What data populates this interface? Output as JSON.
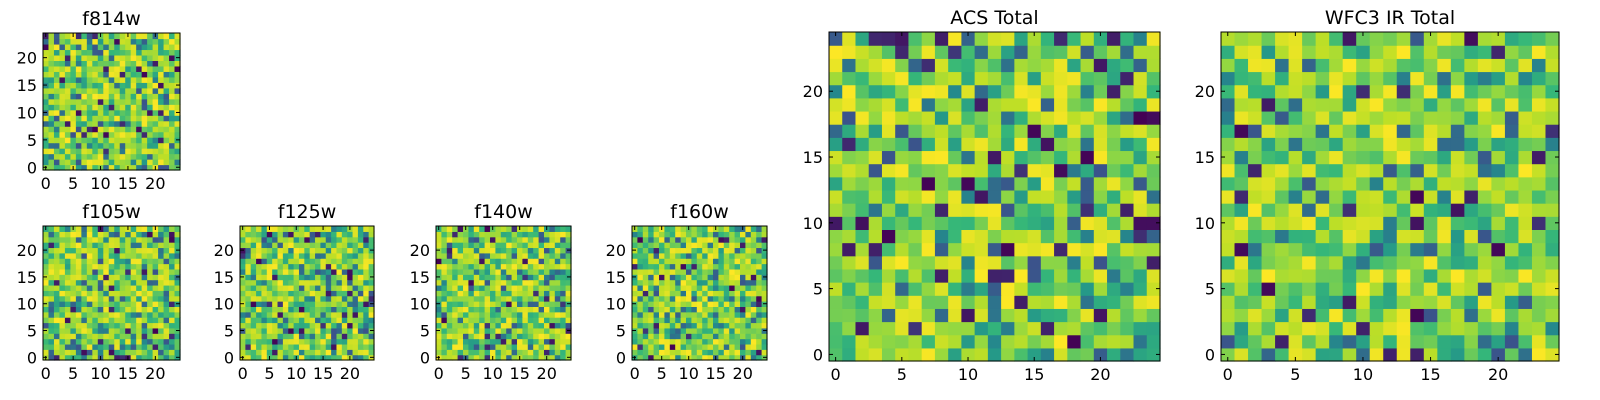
{
  "chart_data": [
    {
      "type": "heatmap",
      "title": "f814w",
      "grid_size": 25,
      "x_ticks": [
        0,
        5,
        10,
        15,
        20
      ],
      "y_ticks": [
        0,
        5,
        10,
        15,
        20
      ],
      "x_tick_labels": [
        "0",
        "5",
        "10",
        "15",
        "20"
      ],
      "y_tick_labels": [
        "0",
        "5",
        "10",
        "15",
        "20"
      ],
      "colormap": "viridis",
      "pixel_values": "per-pixel noise, not legible"
    },
    {
      "type": "heatmap",
      "title": "f105w",
      "grid_size": 25,
      "x_ticks": [
        0,
        5,
        10,
        15,
        20
      ],
      "y_ticks": [
        0,
        5,
        10,
        15,
        20
      ],
      "x_tick_labels": [
        "0",
        "5",
        "10",
        "15",
        "20"
      ],
      "y_tick_labels": [
        "0",
        "5",
        "10",
        "15",
        "20"
      ],
      "colormap": "viridis",
      "pixel_values": "per-pixel noise, not legible"
    },
    {
      "type": "heatmap",
      "title": "f125w",
      "grid_size": 25,
      "x_ticks": [
        0,
        5,
        10,
        15,
        20
      ],
      "y_ticks": [
        0,
        5,
        10,
        15,
        20
      ],
      "x_tick_labels": [
        "0",
        "5",
        "10",
        "15",
        "20"
      ],
      "y_tick_labels": [
        "0",
        "5",
        "10",
        "15",
        "20"
      ],
      "colormap": "viridis",
      "pixel_values": "per-pixel noise, not legible"
    },
    {
      "type": "heatmap",
      "title": "f140w",
      "grid_size": 25,
      "x_ticks": [
        0,
        5,
        10,
        15,
        20
      ],
      "y_ticks": [
        0,
        5,
        10,
        15,
        20
      ],
      "x_tick_labels": [
        "0",
        "5",
        "10",
        "15",
        "20"
      ],
      "y_tick_labels": [
        "0",
        "5",
        "10",
        "15",
        "20"
      ],
      "colormap": "viridis",
      "pixel_values": "per-pixel noise, not legible"
    },
    {
      "type": "heatmap",
      "title": "f160w",
      "grid_size": 25,
      "x_ticks": [
        0,
        5,
        10,
        15,
        20
      ],
      "y_ticks": [
        0,
        5,
        10,
        15,
        20
      ],
      "x_tick_labels": [
        "0",
        "5",
        "10",
        "15",
        "20"
      ],
      "y_tick_labels": [
        "0",
        "5",
        "10",
        "15",
        "20"
      ],
      "colormap": "viridis",
      "pixel_values": "per-pixel noise, not legible"
    },
    {
      "type": "heatmap",
      "title": "ACS Total",
      "grid_size": 25,
      "x_ticks": [
        0,
        5,
        10,
        15,
        20
      ],
      "y_ticks": [
        0,
        5,
        10,
        15,
        20
      ],
      "x_tick_labels": [
        "0",
        "5",
        "10",
        "15",
        "20"
      ],
      "y_tick_labels": [
        "0",
        "5",
        "10",
        "15",
        "20"
      ],
      "colormap": "viridis",
      "pixel_values": "per-pixel noise, not legible"
    },
    {
      "type": "heatmap",
      "title": "WFC3 IR Total",
      "grid_size": 25,
      "x_ticks": [
        0,
        5,
        10,
        15,
        20
      ],
      "y_ticks": [
        0,
        5,
        10,
        15,
        20
      ],
      "x_tick_labels": [
        "0",
        "5",
        "10",
        "15",
        "20"
      ],
      "y_tick_labels": [
        "0",
        "5",
        "10",
        "15",
        "20"
      ],
      "colormap": "viridis",
      "pixel_values": "per-pixel noise, not legible"
    }
  ]
}
